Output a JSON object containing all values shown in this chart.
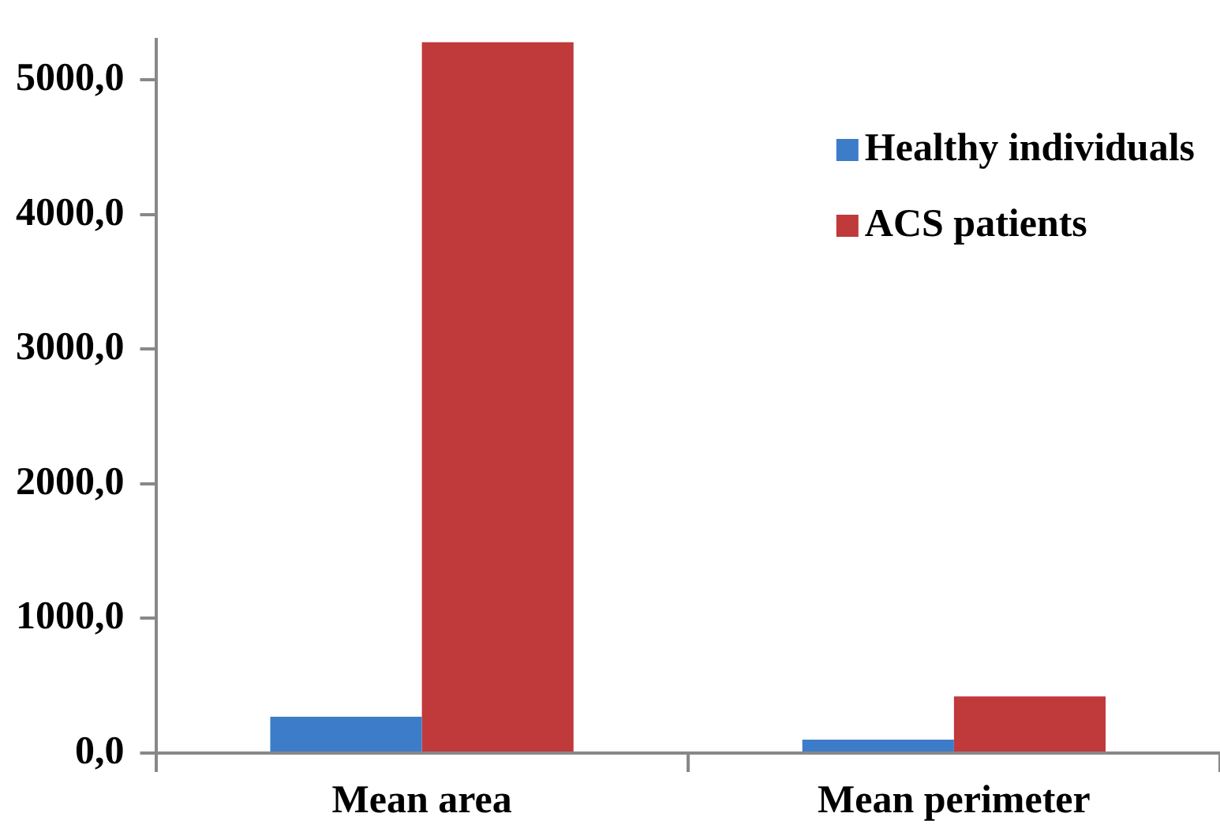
{
  "chart_data": {
    "type": "bar",
    "categories": [
      "Mean area",
      "Mean perimeter"
    ],
    "series": [
      {
        "name": "Healthy individuals",
        "color": "#3d7cc9",
        "values": [
          270,
          100
        ]
      },
      {
        "name": "ACS patients",
        "color": "#c0393b",
        "values": [
          5280,
          420
        ]
      }
    ],
    "ylim": [
      0,
      5300
    ],
    "yticks": [
      {
        "value": 0,
        "label": "0,0"
      },
      {
        "value": 1000,
        "label": "1000,0"
      },
      {
        "value": 2000,
        "label": "2000,0"
      },
      {
        "value": 3000,
        "label": "3000,0"
      },
      {
        "value": 4000,
        "label": "4000,0"
      },
      {
        "value": 5000,
        "label": "5000,0"
      }
    ],
    "grid": false,
    "legend": "top right"
  }
}
